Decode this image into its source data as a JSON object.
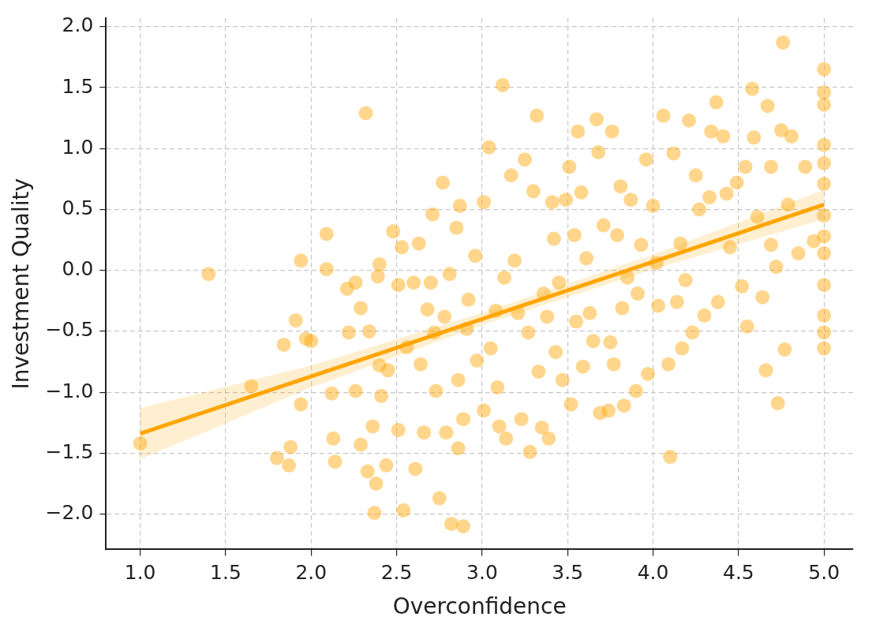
{
  "chart_data": {
    "type": "scatter",
    "xlabel": "Overconfidence",
    "ylabel": "Investment Quality",
    "xlim": [
      0.8,
      5.17
    ],
    "ylim": [
      -2.29,
      2.07
    ],
    "xticks": [
      {
        "value": 1,
        "label": "1.0"
      },
      {
        "value": 1.5,
        "label": "1.5"
      },
      {
        "value": 2,
        "label": "2.0"
      },
      {
        "value": 2.5,
        "label": "2.5"
      },
      {
        "value": 3,
        "label": "3.0"
      },
      {
        "value": 3.5,
        "label": "3.5"
      },
      {
        "value": 4,
        "label": "4.0"
      },
      {
        "value": 4.5,
        "label": "4.5"
      },
      {
        "value": 5,
        "label": "5.0"
      }
    ],
    "yticks": [
      {
        "value": -2,
        "label": "−2.0"
      },
      {
        "value": -1.5,
        "label": "−1.5"
      },
      {
        "value": -1,
        "label": "−1.0"
      },
      {
        "value": -0.5,
        "label": "−0.5"
      },
      {
        "value": 0,
        "label": "0.0"
      },
      {
        "value": 0.5,
        "label": "0.5"
      },
      {
        "value": 1,
        "label": "1.0"
      },
      {
        "value": 1.5,
        "label": "1.5"
      },
      {
        "value": 2,
        "label": "2.0"
      }
    ],
    "grid": true,
    "line_style": "solid",
    "series": [
      {
        "marker": "circle",
        "color": "#ffa500",
        "x": [
          1.4,
          1.0,
          1.65,
          1.8,
          1.87,
          1.88,
          1.84,
          1.91,
          1.94,
          1.94,
          1.97,
          2.0,
          2.09,
          2.09,
          2.12,
          2.13,
          2.14,
          2.21,
          2.22,
          2.26,
          2.26,
          2.29,
          2.29,
          2.32,
          2.33,
          2.34,
          2.36,
          2.37,
          2.38,
          2.39,
          2.4,
          2.4,
          2.41,
          2.44,
          2.45,
          2.48,
          2.51,
          2.51,
          2.53,
          2.54,
          2.56,
          2.6,
          2.61,
          2.63,
          2.64,
          2.66,
          2.68,
          2.7,
          2.71,
          2.72,
          2.73,
          2.75,
          2.77,
          2.78,
          2.79,
          2.81,
          2.82,
          2.85,
          2.86,
          2.86,
          2.87,
          2.89,
          2.89,
          2.91,
          2.92,
          2.96,
          2.97,
          3.01,
          3.01,
          3.04,
          3.05,
          3.08,
          3.09,
          3.1,
          3.12,
          3.13,
          3.14,
          3.17,
          3.19,
          3.21,
          3.23,
          3.25,
          3.27,
          3.28,
          3.3,
          3.32,
          3.33,
          3.35,
          3.36,
          3.38,
          3.39,
          3.41,
          3.42,
          3.43,
          3.45,
          3.47,
          3.49,
          3.51,
          3.52,
          3.54,
          3.55,
          3.56,
          3.58,
          3.59,
          3.61,
          3.63,
          3.65,
          3.67,
          3.68,
          3.69,
          3.71,
          3.74,
          3.75,
          3.76,
          3.77,
          3.79,
          3.81,
          3.82,
          3.83,
          3.85,
          3.87,
          3.9,
          3.91,
          3.93,
          3.96,
          3.97,
          4.0,
          4.02,
          4.03,
          4.06,
          4.09,
          4.1,
          4.12,
          4.14,
          4.16,
          4.17,
          4.19,
          4.21,
          4.23,
          4.25,
          4.27,
          4.3,
          4.33,
          4.34,
          4.37,
          4.38,
          4.41,
          4.43,
          4.45,
          4.49,
          4.52,
          4.54,
          4.55,
          4.58,
          4.59,
          4.61,
          4.64,
          4.66,
          4.67,
          4.69,
          4.69,
          4.72,
          4.73,
          4.75,
          4.76,
          4.77,
          4.79,
          4.81,
          4.85,
          4.89,
          4.94,
          5.0,
          5.0,
          5.0,
          5.0,
          5.0,
          5.0,
          5.0,
          5.0,
          5.0,
          5.0,
          5.0,
          5.0,
          5.0
        ],
        "values": [
          -0.03,
          -1.42,
          -0.95,
          -1.54,
          -1.6,
          -1.45,
          -0.61,
          -0.41,
          0.08,
          -1.1,
          -0.56,
          -0.58,
          0.3,
          0.01,
          -1.01,
          -1.38,
          -1.57,
          -0.15,
          -0.51,
          -0.1,
          -0.99,
          -0.31,
          -1.43,
          1.29,
          -1.65,
          -0.5,
          -1.28,
          -1.99,
          -1.75,
          -0.05,
          0.05,
          -0.78,
          -1.03,
          -1.6,
          -0.82,
          0.32,
          -0.12,
          -1.31,
          0.19,
          -1.97,
          -0.63,
          -0.1,
          -1.63,
          0.22,
          -0.77,
          -1.33,
          -0.32,
          -0.1,
          0.46,
          -0.51,
          -0.99,
          -1.87,
          0.72,
          -0.38,
          -1.33,
          -0.03,
          -2.08,
          0.35,
          -0.9,
          -1.46,
          0.53,
          -2.1,
          -1.22,
          -0.48,
          -0.24,
          0.12,
          -0.74,
          -1.15,
          0.56,
          1.01,
          -0.64,
          -0.33,
          -0.96,
          -1.28,
          1.52,
          -0.06,
          -1.38,
          0.78,
          0.08,
          -0.35,
          -1.22,
          0.91,
          -0.51,
          -1.49,
          0.65,
          1.27,
          -0.83,
          -1.29,
          -0.19,
          -0.38,
          -1.38,
          0.56,
          0.26,
          -0.67,
          -0.1,
          -0.9,
          0.58,
          0.85,
          -1.1,
          0.29,
          -0.42,
          1.14,
          0.64,
          -0.79,
          0.1,
          -0.35,
          -0.58,
          1.24,
          0.97,
          -1.17,
          0.37,
          -1.15,
          -0.59,
          1.14,
          -0.77,
          0.29,
          0.69,
          -0.31,
          -1.11,
          -0.06,
          0.58,
          -0.99,
          -0.19,
          0.21,
          0.91,
          -0.85,
          0.53,
          0.06,
          -0.29,
          1.27,
          -0.77,
          -1.53,
          0.96,
          -0.26,
          0.22,
          -0.64,
          -0.08,
          1.23,
          -0.51,
          0.78,
          0.5,
          -0.37,
          0.6,
          1.14,
          1.38,
          -0.26,
          1.1,
          0.63,
          0.19,
          0.72,
          -0.13,
          0.85,
          -0.46,
          1.49,
          1.09,
          0.44,
          -0.22,
          -0.82,
          1.35,
          0.85,
          0.21,
          0.03,
          -1.09,
          1.15,
          1.87,
          -0.65,
          0.54,
          1.1,
          0.14,
          0.85,
          0.24,
          1.65,
          1.46,
          1.36,
          1.03,
          0.88,
          0.71,
          0.45,
          0.28,
          0.14,
          -0.12,
          -0.37,
          -0.51,
          -0.64
        ]
      },
      {
        "type": "line",
        "marker": "none",
        "color": "#ffa500",
        "x": [
          1,
          2,
          3,
          4,
          5
        ],
        "values": [
          -1.34,
          -0.87,
          -0.4,
          0.07,
          0.54
        ],
        "lower": [
          -1.55,
          -0.96,
          -0.45,
          0.01,
          0.42
        ],
        "upper": [
          -1.13,
          -0.78,
          -0.35,
          0.13,
          0.66
        ]
      }
    ]
  }
}
